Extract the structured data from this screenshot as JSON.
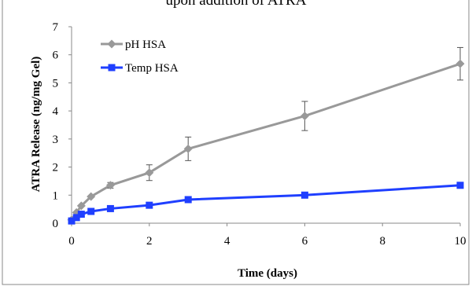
{
  "chart_data": {
    "type": "line",
    "title": "upon addition of ATRA",
    "xlabel": "Time (days)",
    "ylabel": "ATRA Release (ng/mg Gel)",
    "xlim": [
      0,
      10
    ],
    "ylim": [
      0,
      7
    ],
    "xticks": [
      "0",
      "2",
      "4",
      "6",
      "8",
      "10"
    ],
    "yticks": [
      "0",
      "1",
      "2",
      "3",
      "4",
      "5",
      "6",
      "7"
    ],
    "grid": false,
    "legend_position": "top-left",
    "series": [
      {
        "name": "pH HSA",
        "color": "#999999",
        "marker": "diamond",
        "x": [
          0,
          0.125,
          0.25,
          0.5,
          1,
          2,
          3,
          6,
          10
        ],
        "y": [
          0.12,
          0.38,
          0.62,
          0.95,
          1.35,
          1.8,
          2.65,
          3.82,
          5.68
        ],
        "err": [
          0,
          0,
          0,
          0,
          0.1,
          0.28,
          0.42,
          0.52,
          0.58
        ]
      },
      {
        "name": "Temp HSA",
        "color": "#1f3fff",
        "marker": "square",
        "x": [
          0,
          0.125,
          0.25,
          0.5,
          1,
          2,
          3,
          6,
          10
        ],
        "y": [
          0.08,
          0.2,
          0.32,
          0.42,
          0.52,
          0.64,
          0.84,
          1.0,
          1.35
        ],
        "err": [
          0,
          0,
          0,
          0,
          0,
          0,
          0,
          0,
          0
        ]
      }
    ]
  }
}
